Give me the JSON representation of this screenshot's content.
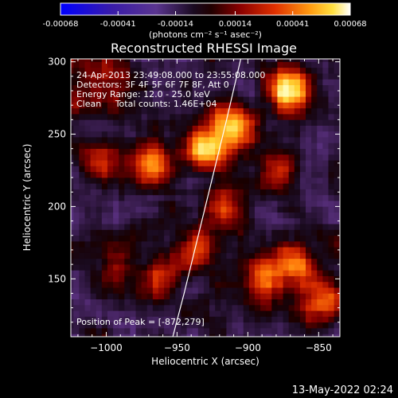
{
  "chart_data": {
    "type": "heatmap",
    "title": "Reconstructed RHESSI Image",
    "xlabel": "Heliocentric X (arcsec)",
    "ylabel": "Heliocentric Y (arcsec)",
    "xlim": [
      -1025,
      -835
    ],
    "ylim": [
      110,
      302
    ],
    "x_ticks": [
      -1000,
      -950,
      -900,
      -850
    ],
    "y_ticks": [
      150,
      200,
      250,
      300
    ],
    "colorbar": {
      "label": "(photons cm⁻² s⁻¹ asec⁻²)",
      "ticks": [
        "-0.00068",
        "-0.00041",
        "-0.00014",
        "0.00014",
        "0.00041",
        "0.00068"
      ],
      "range": [
        -0.00068,
        0.00068
      ],
      "colors": [
        "#0000ff",
        "#4b0082",
        "#7a3fb0",
        "#000000",
        "#7a0000",
        "#d01000",
        "#ff7f00",
        "#ffff80",
        "#ffffff"
      ]
    },
    "annotations": [
      "24-Apr-2013 23:49:08.000 to 23:55:08.000",
      "Detectors: 3F 4F 5F 6F 7F 8F, Att 0",
      "Energy Range: 12.0 - 25.0 keV",
      "Clean     Total counts: 1.46E+04",
      "Position of Peak = [-872,279]"
    ],
    "limb_curve": [
      [
        -953,
        110
      ],
      [
        -945,
        140
      ],
      [
        -935,
        180
      ],
      [
        -925,
        220
      ],
      [
        -915,
        260
      ],
      [
        -905,
        302
      ]
    ],
    "emission_peaks": [
      {
        "x": -872,
        "y": 279,
        "intensity": 1.0
      },
      {
        "x": -910,
        "y": 255,
        "intensity": 0.9
      },
      {
        "x": -930,
        "y": 240,
        "intensity": 0.7
      },
      {
        "x": -965,
        "y": 230,
        "intensity": 0.75
      },
      {
        "x": -1005,
        "y": 230,
        "intensity": 0.5
      },
      {
        "x": -915,
        "y": 200,
        "intensity": 0.65
      },
      {
        "x": -935,
        "y": 170,
        "intensity": 0.5
      },
      {
        "x": -960,
        "y": 150,
        "intensity": 0.45
      },
      {
        "x": -995,
        "y": 155,
        "intensity": 0.45
      },
      {
        "x": -890,
        "y": 150,
        "intensity": 0.6
      },
      {
        "x": -865,
        "y": 160,
        "intensity": 0.7
      },
      {
        "x": -845,
        "y": 135,
        "intensity": 0.65
      },
      {
        "x": -880,
        "y": 225,
        "intensity": 0.45
      },
      {
        "x": -1000,
        "y": 285,
        "intensity": 0.4
      }
    ]
  },
  "timestamp": "13-May-2022 02:24"
}
